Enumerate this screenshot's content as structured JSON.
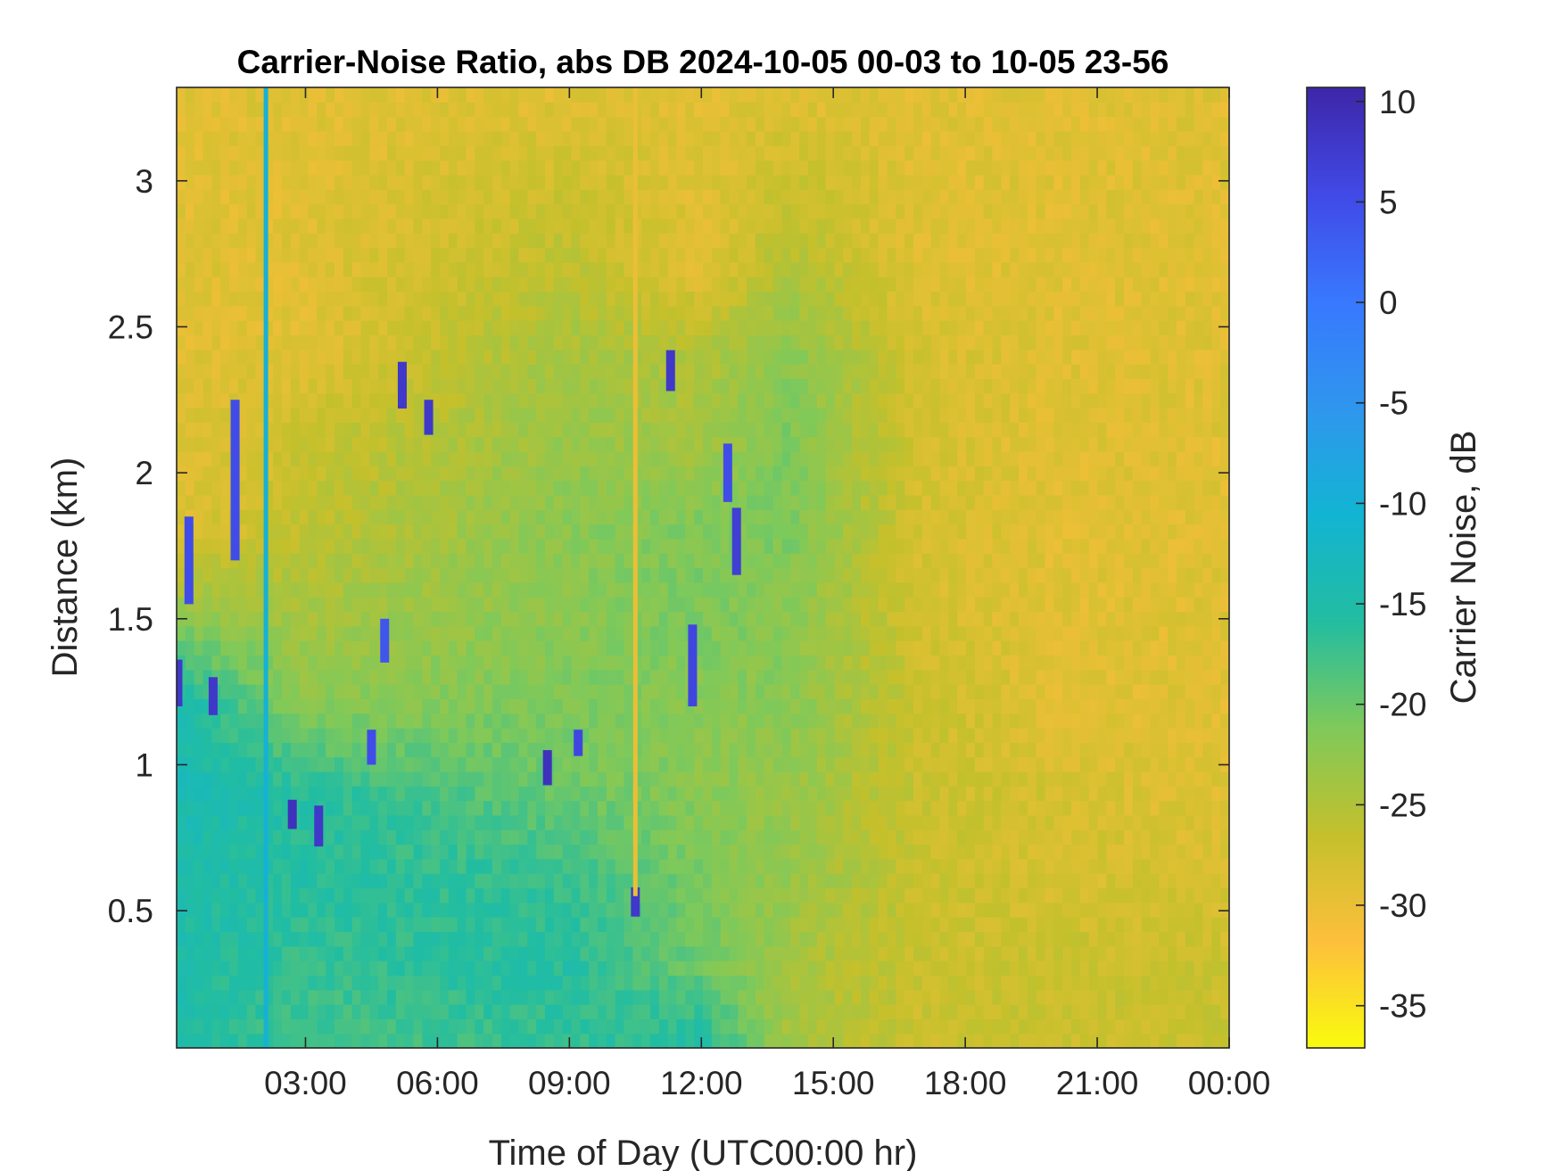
{
  "chart_data": {
    "type": "heatmap",
    "title": "Carrier-Noise Ratio, abs DB 2024-10-05 00-03 to 10-05 23-56",
    "xlabel": "Time of Day (UTC00:00 hr)",
    "ylabel": "Distance (km)",
    "colorbar_label": "Carrier Noise, dB",
    "x_ticks": [
      {
        "value": 3,
        "label": "03:00"
      },
      {
        "value": 6,
        "label": "06:00"
      },
      {
        "value": 9,
        "label": "09:00"
      },
      {
        "value": 12,
        "label": "12:00"
      },
      {
        "value": 15,
        "label": "15:00"
      },
      {
        "value": 18,
        "label": "18:00"
      },
      {
        "value": 21,
        "label": "21:00"
      },
      {
        "value": 24,
        "label": "00:00"
      }
    ],
    "y_ticks": [
      {
        "value": 0.5,
        "label": "0.5"
      },
      {
        "value": 1,
        "label": "1"
      },
      {
        "value": 1.5,
        "label": "1.5"
      },
      {
        "value": 2,
        "label": "2"
      },
      {
        "value": 2.5,
        "label": "2.5"
      },
      {
        "value": 3,
        "label": "3"
      }
    ],
    "colorbar_ticks": [
      {
        "value": 10,
        "label": "10"
      },
      {
        "value": 5,
        "label": "5"
      },
      {
        "value": 0,
        "label": "0"
      },
      {
        "value": -5,
        "label": "-5"
      },
      {
        "value": -10,
        "label": "-10"
      },
      {
        "value": -15,
        "label": "-15"
      },
      {
        "value": -20,
        "label": "-20"
      },
      {
        "value": -25,
        "label": "-25"
      },
      {
        "value": -30,
        "label": "-30"
      },
      {
        "value": -35,
        "label": "-35"
      }
    ],
    "xlim": [
      0.07,
      24.0
    ],
    "ylim": [
      0.03,
      3.32
    ],
    "clim": [
      -37.1,
      10.7
    ],
    "colormap": "parula",
    "colormap_stops": [
      "#f9fb0e",
      "#fdbf3c",
      "#c4c02c",
      "#7fc95a",
      "#22bda1",
      "#12b4d3",
      "#2f96ee",
      "#3878fe",
      "#4149e6",
      "#3e26a8"
    ],
    "background_value_db": -29,
    "gradient_x": [
      0.0,
      3.0,
      9.0,
      12.0,
      14.0,
      17.0,
      20.0,
      24.0
    ],
    "gradient_y": [
      0.03,
      0.3,
      0.6,
      0.9,
      1.2,
      1.5,
      1.8,
      2.1,
      2.4,
      2.7,
      3.32
    ],
    "gradient_values_db": [
      [
        -15.0,
        -15.0,
        -15.0,
        -14.0,
        -14.0,
        -22.0,
        -29.0,
        -29.0,
        -29.0,
        -29.0,
        -29.0
      ],
      [
        -18.0,
        -17.0,
        -16.0,
        -16.0,
        -22.0,
        -24.0,
        -26.0,
        -27.0,
        -29.0,
        -29.0,
        -29.0
      ],
      [
        -17.0,
        -16.0,
        -17.0,
        -20.0,
        -21.0,
        -22.0,
        -22.0,
        -23.0,
        -24.0,
        -26.0,
        -29.0
      ],
      [
        -15.0,
        -20.0,
        -21.0,
        -22.0,
        -22.0,
        -21.0,
        -21.0,
        -24.0,
        -25.0,
        -29.0,
        -29.0
      ],
      [
        -24.0,
        -24.0,
        -23.0,
        -23.0,
        -22.0,
        -22.0,
        -21.0,
        -21.0,
        -22.0,
        -25.0,
        -29.0
      ],
      [
        -27.0,
        -27.0,
        -27.0,
        -27.0,
        -27.0,
        -28.0,
        -28.0,
        -28.0,
        -28.0,
        -29.0,
        -29.0
      ],
      [
        -27.0,
        -27.0,
        -28.0,
        -28.0,
        -29.0,
        -29.0,
        -29.0,
        -29.0,
        -29.0,
        -29.0,
        -29.0
      ],
      [
        -27.0,
        -27.0,
        -28.0,
        -29.0,
        -29.0,
        -29.0,
        -29.0,
        -29.0,
        -29.0,
        -29.0,
        -29.0
      ]
    ],
    "features": [
      {
        "t": 0.1,
        "y0": 1.2,
        "y1": 1.36,
        "db": 8
      },
      {
        "t": 0.9,
        "y0": 1.17,
        "y1": 1.3,
        "db": 8
      },
      {
        "t": 2.7,
        "y0": 0.78,
        "y1": 0.88,
        "db": 9
      },
      {
        "t": 3.3,
        "y0": 0.72,
        "y1": 0.86,
        "db": 8
      },
      {
        "t": 1.4,
        "y0": 1.7,
        "y1": 2.25,
        "db": 5
      },
      {
        "t": 0.35,
        "y0": 1.55,
        "y1": 1.85,
        "db": 5
      },
      {
        "t": 5.2,
        "y0": 2.22,
        "y1": 2.38,
        "db": 8
      },
      {
        "t": 5.8,
        "y0": 2.13,
        "y1": 2.25,
        "db": 8
      },
      {
        "t": 4.8,
        "y0": 1.35,
        "y1": 1.5,
        "db": 4
      },
      {
        "t": 4.5,
        "y0": 1.0,
        "y1": 1.12,
        "db": 5
      },
      {
        "t": 8.5,
        "y0": 0.93,
        "y1": 1.05,
        "db": 9
      },
      {
        "t": 9.2,
        "y0": 1.03,
        "y1": 1.12,
        "db": 6
      },
      {
        "t": 10.5,
        "y0": 0.48,
        "y1": 0.58,
        "db": 8
      },
      {
        "t": 11.3,
        "y0": 2.28,
        "y1": 2.42,
        "db": 8
      },
      {
        "t": 11.8,
        "y0": 1.2,
        "y1": 1.48,
        "db": 6
      },
      {
        "t": 12.6,
        "y0": 1.9,
        "y1": 2.1,
        "db": 5
      },
      {
        "t": 12.8,
        "y0": 1.65,
        "y1": 1.88,
        "db": 7
      },
      {
        "t": 2.1,
        "y0": 0.03,
        "y1": 3.32,
        "db": -10
      },
      {
        "t": 10.5,
        "y0": 0.55,
        "y1": 3.32,
        "db": -30
      }
    ]
  }
}
